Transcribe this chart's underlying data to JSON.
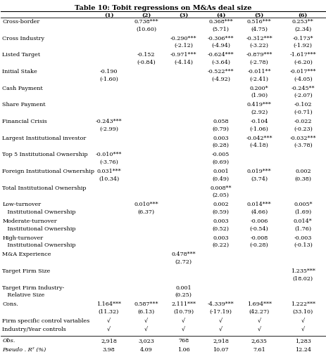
{
  "title": "Table 10: Tobit regressions on M&As deal size",
  "columns": [
    "",
    "(1)",
    "(2)",
    "(3)",
    "(4)",
    "(5)",
    "(6)"
  ],
  "rows": [
    [
      "Cross-border",
      "",
      "0.738***\n(10.60)",
      "",
      "0.368***\n(5.71)",
      "0.516***\n(4.75)",
      "0.253**\n(2.34)"
    ],
    [
      "Cross Industry",
      "",
      "",
      "-0.290***\n(-2.12)",
      "-0.306***\n(-4.94)",
      "-0.312***\n(-3.22)",
      "-0.173*\n(-1.92)"
    ],
    [
      "Listed Target",
      "",
      "-0.152\n(-0.84)",
      "-0.971***\n(-4.14)",
      "-0.624***\n(-3.64)",
      "-0.879***\n(-2.78)",
      "-1.617***\n(-6.20)"
    ],
    [
      "Initial Stake",
      "-0.190\n(-1.60)",
      "",
      "",
      "-0.522***\n(-4.92)",
      "-0.011**\n(-2.41)",
      "-0.017***\n(-4.05)"
    ],
    [
      "Cash Payment",
      "",
      "",
      "",
      "",
      "0.200*\n(1.90)",
      "-0.245**\n(-2.07)"
    ],
    [
      "Share Payment",
      "",
      "",
      "",
      "",
      "0.419***\n(2.92)",
      "-0.102\n(-0.71)"
    ],
    [
      "Financial Crisis",
      "-0.243***\n(-2.99)",
      "",
      "",
      "0.058\n(0.79)",
      "-0.104\n(-1.06)",
      "-0.022\n(-0.23)"
    ],
    [
      "Largest Institutional investor",
      "",
      "",
      "",
      "0.003\n(0.28)",
      "-0.042***\n(-4.18)",
      "-0.032***\n(-3.78)"
    ],
    [
      "Top 5 Institutional Ownership",
      "-0.010***\n(-3.76)",
      "",
      "",
      "-0.005\n(0.69)",
      "",
      ""
    ],
    [
      "Foreign Institutional Ownership",
      "0.031***\n(10.34)",
      "",
      "",
      "0.001\n(0.49)",
      "0.019***\n(3.74)",
      "0.002\n(0.38)"
    ],
    [
      "Total Institutional Ownership",
      "",
      "",
      "",
      "0.008**\n(2.05)",
      "",
      ""
    ],
    [
      "Low-turnover\n   Institutional Ownership",
      "",
      "0.010***\n(6.37)",
      "",
      "0.002\n(0.59)",
      "0.014***\n(4.66)",
      "0.005*\n(1.69)"
    ],
    [
      "Moderate-turnover\n   Institutional Ownership",
      "",
      "",
      "",
      "0.003\n(0.52)",
      "-0.006\n(-0.54)",
      "0.014*\n(1.76)"
    ],
    [
      "High-turnover\n   Institutional Ownership",
      "",
      "",
      "",
      "0.003\n(0.22)",
      "-0.008\n(-0.28)",
      "-0.003\n(-0.13)"
    ],
    [
      "M&A Experience",
      "",
      "",
      "0.478***\n(2.72)",
      "",
      "",
      ""
    ],
    [
      "Target Firm Size",
      "",
      "",
      "",
      "",
      "",
      "1.235***\n(18.02)"
    ],
    [
      "Target Firm Industry-\n   Relative Size",
      "",
      "",
      "0.001\n(0.25)",
      "",
      "",
      ""
    ],
    [
      "Cons.",
      "1.164***\n(11.32)",
      "0.587***\n(6.13)",
      "2.111***\n(10.79)",
      "-4.339***\n(-17.19)",
      "1.694***\n(42.27)",
      "1.222***\n(33.10)"
    ],
    [
      "Firm specific control variables",
      "√",
      "√",
      "√",
      "√",
      "√",
      "√"
    ],
    [
      "Industry/Year controls",
      "√",
      "√",
      "√",
      "√",
      "√",
      "√"
    ]
  ],
  "obs_row": [
    "Obs.",
    "2,918",
    "3,023",
    "768",
    "2,918",
    "2,635",
    "1,283"
  ],
  "r2_row": [
    "Pseudo . R² (%)",
    "3.98",
    "4.09",
    "1.06",
    "10.07",
    "7.61",
    "12.24"
  ],
  "font_size": 5.8,
  "title_font_size": 7.0
}
